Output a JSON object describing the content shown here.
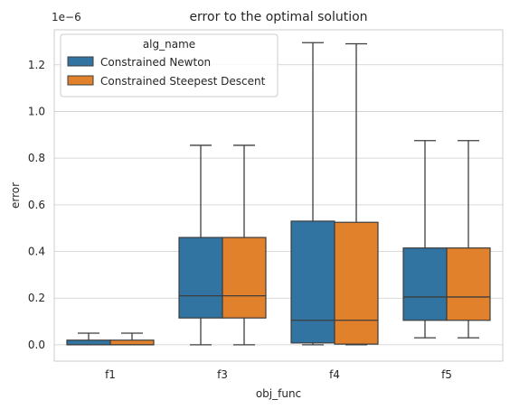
{
  "chart_data": {
    "type": "box",
    "title": "error to the optimal solution",
    "xlabel": "obj_func",
    "ylabel": "error",
    "y_scale_label": "1e−6",
    "y_multiplier": 1e-06,
    "ylim": [
      -0.07,
      1.35
    ],
    "yticks": [
      0.0,
      0.2,
      0.4,
      0.6,
      0.8,
      1.0,
      1.2
    ],
    "ytick_labels": [
      "0.0",
      "0.2",
      "0.4",
      "0.6",
      "0.8",
      "1.0",
      "1.2"
    ],
    "grid": "horizontal",
    "categories": [
      "f1",
      "f3",
      "f4",
      "f5"
    ],
    "legend": {
      "title": "alg_name",
      "placement": "top-left"
    },
    "series": [
      {
        "name": "Constrained Newton",
        "color": "#3274a1",
        "boxes": [
          {
            "whisker_low": 0.0,
            "q1": 0.0,
            "median": 0.0,
            "q3": 0.02,
            "whisker_high": 0.05
          },
          {
            "whisker_low": 0.0,
            "q1": 0.115,
            "median": 0.21,
            "q3": 0.46,
            "whisker_high": 0.855
          },
          {
            "whisker_low": 0.0,
            "q1": 0.008,
            "median": 0.105,
            "q3": 0.53,
            "whisker_high": 1.295
          },
          {
            "whisker_low": 0.03,
            "q1": 0.105,
            "median": 0.205,
            "q3": 0.415,
            "whisker_high": 0.875
          }
        ]
      },
      {
        "name": "Constrained Steepest Descent",
        "color": "#e1812c",
        "boxes": [
          {
            "whisker_low": 0.0,
            "q1": 0.0,
            "median": 0.0,
            "q3": 0.02,
            "whisker_high": 0.05
          },
          {
            "whisker_low": 0.0,
            "q1": 0.115,
            "median": 0.21,
            "q3": 0.46,
            "whisker_high": 0.855
          },
          {
            "whisker_low": 0.0,
            "q1": 0.003,
            "median": 0.105,
            "q3": 0.525,
            "whisker_high": 1.29
          },
          {
            "whisker_low": 0.03,
            "q1": 0.105,
            "median": 0.205,
            "q3": 0.415,
            "whisker_high": 0.875
          }
        ]
      }
    ]
  }
}
